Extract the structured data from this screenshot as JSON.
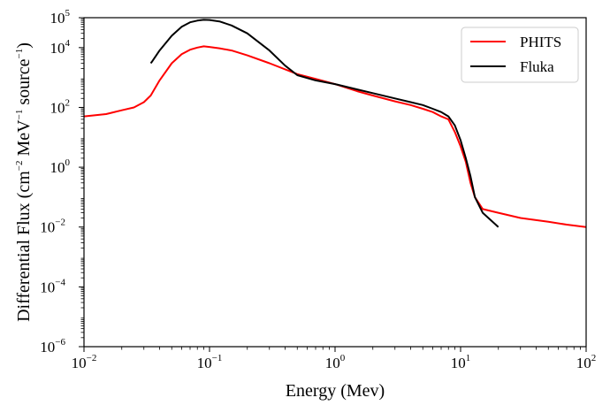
{
  "chart_data": {
    "type": "line",
    "xlabel": "Energy (Mev)",
    "ylabel": {
      "prefix": "Differential Flux (cm",
      "sup1": "−2",
      "mid": " MeV",
      "sup2": "−1",
      "mid2": " source",
      "sup3": "−1",
      "suffix": ")"
    },
    "xscale": "log",
    "yscale": "log",
    "xlim": [
      0.01,
      100
    ],
    "ylim": [
      1e-06,
      100000
    ],
    "xticks": [
      {
        "base": "10",
        "exp": "−2",
        "value": 0.01
      },
      {
        "base": "10",
        "exp": "−1",
        "value": 0.1
      },
      {
        "base": "10",
        "exp": "0",
        "value": 1
      },
      {
        "base": "10",
        "exp": "1",
        "value": 10
      },
      {
        "base": "10",
        "exp": "2",
        "value": 100
      }
    ],
    "yticks": [
      {
        "base": "10",
        "exp": "−6",
        "value": 1e-06
      },
      {
        "base": "10",
        "exp": "−4",
        "value": 0.0001
      },
      {
        "base": "10",
        "exp": "−2",
        "value": 0.01
      },
      {
        "base": "10",
        "exp": "0",
        "value": 1
      },
      {
        "base": "10",
        "exp": "2",
        "value": 100
      },
      {
        "base": "10",
        "exp": "4",
        "value": 10000
      },
      {
        "base": "10",
        "exp": "5",
        "value": 100000
      }
    ],
    "legend_position": "top-right",
    "series": [
      {
        "name": "PHITS",
        "color": "#ff0000",
        "x": [
          0.01,
          0.015,
          0.02,
          0.025,
          0.03,
          0.034,
          0.04,
          0.05,
          0.06,
          0.07,
          0.08,
          0.09,
          0.1,
          0.12,
          0.15,
          0.2,
          0.3,
          0.5,
          0.7,
          1,
          1.5,
          2,
          3,
          4,
          5,
          6,
          7,
          8,
          9,
          10,
          11,
          12,
          13,
          15,
          20,
          30,
          50,
          70,
          100
        ],
        "y": [
          50,
          60,
          80,
          100,
          150,
          250,
          800,
          3000,
          6000,
          8500,
          10000,
          11000,
          10500,
          9500,
          8000,
          5500,
          3000,
          1300,
          900,
          600,
          350,
          250,
          160,
          120,
          90,
          70,
          50,
          40,
          15,
          5,
          1.5,
          0.3,
          0.1,
          0.04,
          0.03,
          0.02,
          0.015,
          0.012,
          0.01
        ]
      },
      {
        "name": "Fluka",
        "color": "#000000",
        "x": [
          0.034,
          0.035,
          0.04,
          0.05,
          0.06,
          0.07,
          0.08,
          0.09,
          0.1,
          0.12,
          0.15,
          0.2,
          0.3,
          0.4,
          0.5,
          0.7,
          1,
          1.5,
          2,
          3,
          4,
          5,
          6,
          7,
          8,
          9,
          10,
          11,
          12,
          13,
          15,
          20
        ],
        "y": [
          3000,
          3500,
          8000,
          25000,
          50000,
          70000,
          80000,
          85000,
          84000,
          75000,
          55000,
          30000,
          8000,
          2500,
          1200,
          800,
          600,
          400,
          300,
          200,
          150,
          120,
          90,
          70,
          50,
          25,
          8,
          2,
          0.5,
          0.1,
          0.03,
          0.01
        ]
      }
    ]
  }
}
